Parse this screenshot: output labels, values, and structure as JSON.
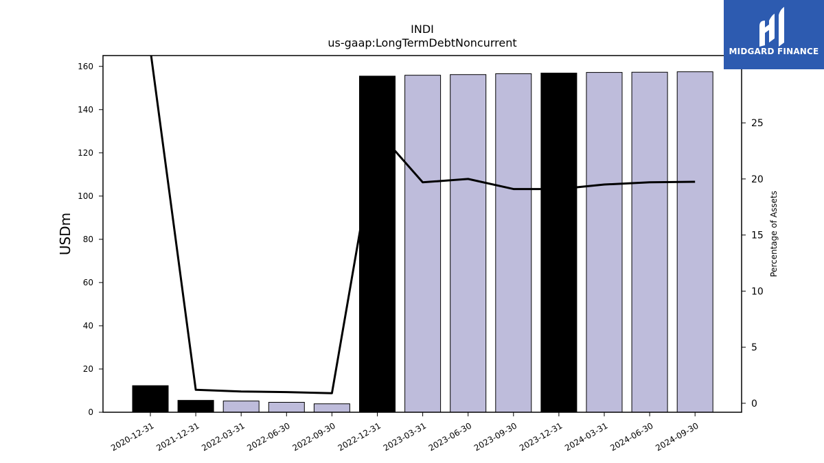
{
  "chart_data": {
    "type": "bar",
    "title": "INDI",
    "subtitle": "us-gaap:LongTermDebtNoncurrent",
    "ylabel": "USDm",
    "y2label": "Percentage of Assets",
    "ylim": [
      0,
      165
    ],
    "y2lim": [
      -0.8,
      31.0
    ],
    "yticks": [
      0,
      20,
      40,
      60,
      80,
      100,
      120,
      140,
      160
    ],
    "y2ticks": [
      0,
      5,
      10,
      15,
      20,
      25
    ],
    "categories": [
      "2020-12-31",
      "2021-12-31",
      "2022-03-31",
      "2022-06-30",
      "2022-09-30",
      "2022-12-31",
      "2023-03-31",
      "2023-06-30",
      "2023-09-30",
      "2023-12-31",
      "2024-03-31",
      "2024-06-30",
      "2024-09-30"
    ],
    "series": [
      {
        "type": "bar",
        "values": [
          12.3,
          5.5,
          5.2,
          4.6,
          3.9,
          155.5,
          155.9,
          156.2,
          156.6,
          156.9,
          157.2,
          157.3,
          157.5
        ],
        "fiscal_year_end": [
          true,
          true,
          false,
          false,
          false,
          true,
          false,
          false,
          false,
          true,
          false,
          false,
          false
        ]
      },
      {
        "type": "line",
        "axis": "right",
        "values": [
          31.5,
          1.2,
          1.05,
          1.0,
          0.9,
          24.3,
          19.7,
          20.0,
          19.1,
          19.1,
          19.5,
          19.7,
          19.75
        ]
      }
    ],
    "colors": {
      "annual_bar": "#000000",
      "quarterly_bar": "#bebcdb",
      "bar_edge": "#000000",
      "line": "#000000"
    },
    "grid": false
  },
  "logo": {
    "text": "MIDGARD FINANCE",
    "background": "#2d5bb0"
  }
}
